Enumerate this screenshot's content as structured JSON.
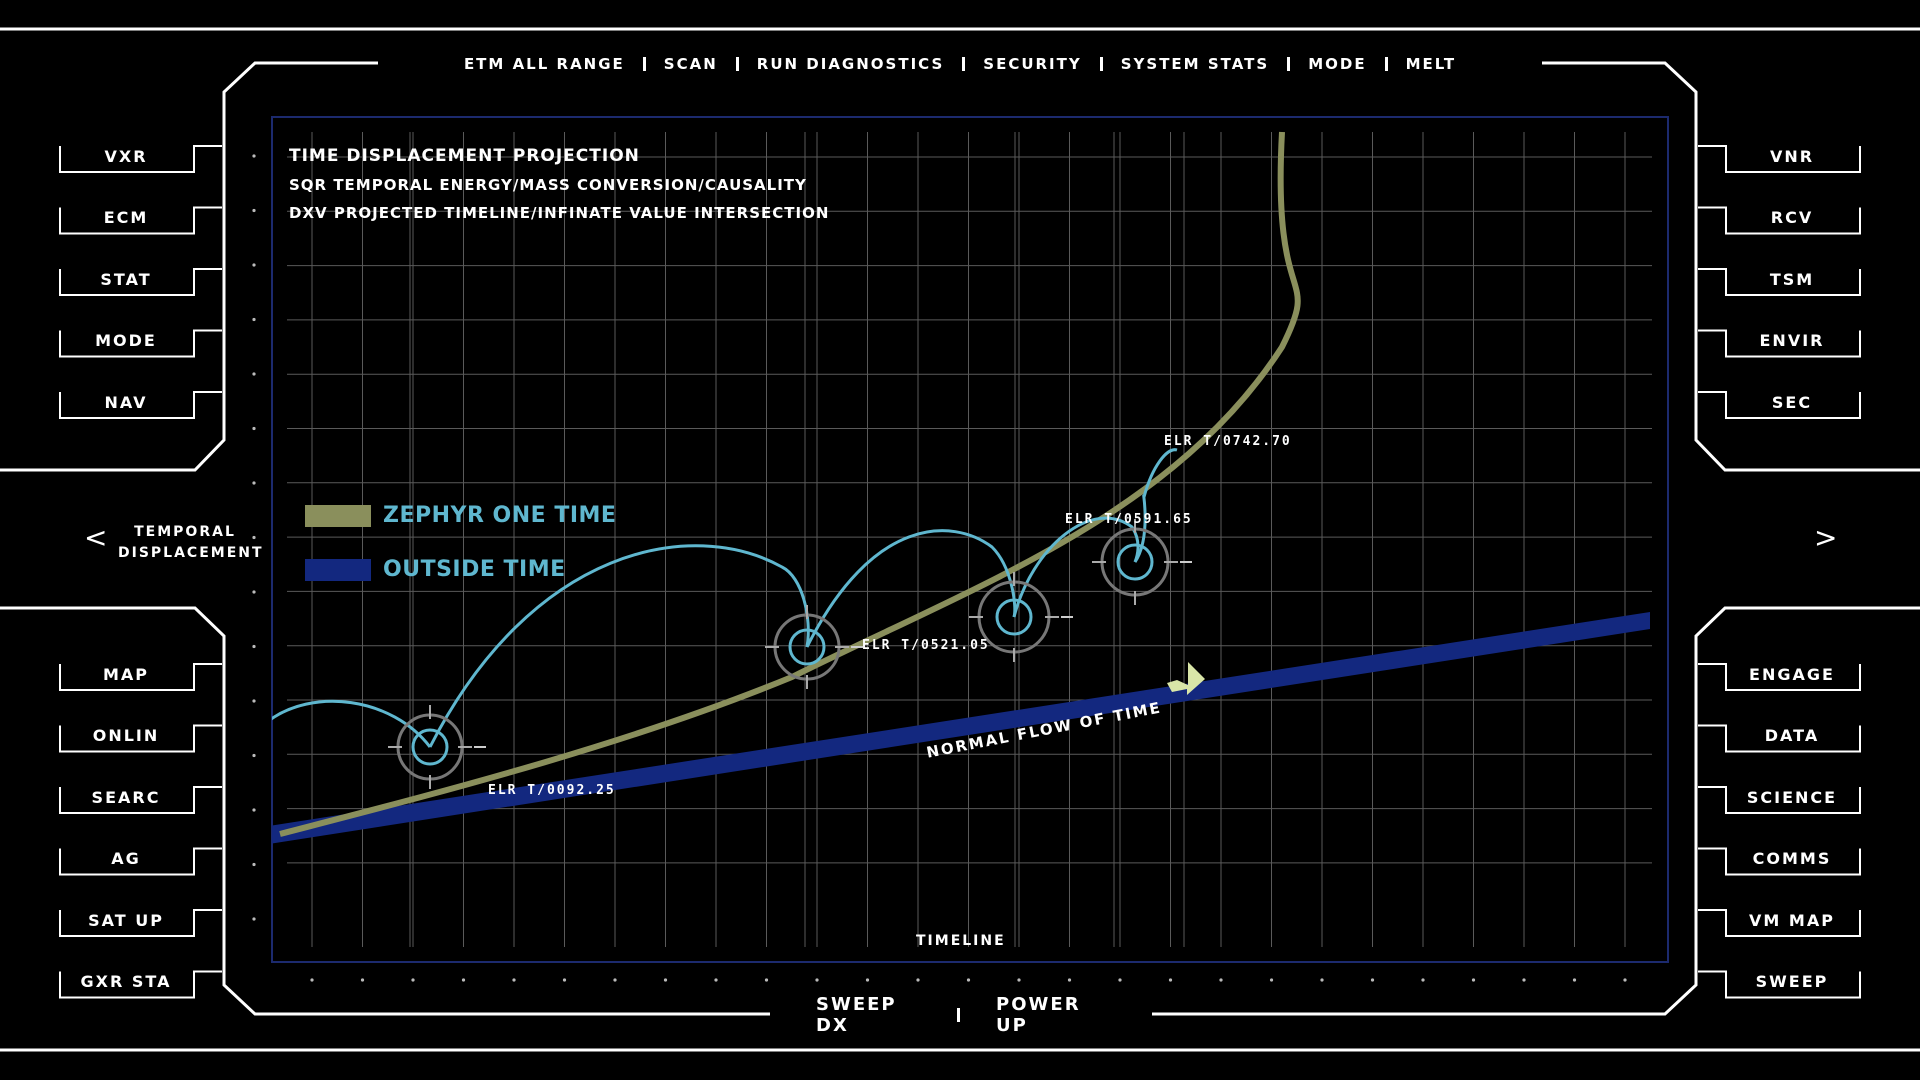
{
  "top_menu": [
    "ETM ALL RANGE",
    "SCAN",
    "RUN DIAGNOSTICS",
    "SECURITY",
    "SYSTEM STATS",
    "MODE",
    "MELT"
  ],
  "left_top_buttons": [
    "VXR",
    "ECM",
    "STAT",
    "MODE",
    "NAV"
  ],
  "left_bottom_buttons": [
    "MAP",
    "ONLIN",
    "SEARC",
    "AG",
    "SAT UP",
    "GXR STA"
  ],
  "right_top_buttons": [
    "VNR",
    "RCV",
    "TSM",
    "ENVIR",
    "SEC"
  ],
  "right_bottom_buttons": [
    "ENGAGE",
    "DATA",
    "SCIENCE",
    "COMMS",
    "VM MAP",
    "SWEEP"
  ],
  "left_nav": {
    "arrow": "<",
    "label_line1": "TEMPORAL",
    "label_line2": "DISPLACEMENT"
  },
  "right_nav": {
    "arrow": ">"
  },
  "bottom_menu": [
    "SWEEP DX",
    "POWER UP"
  ],
  "chart_header": {
    "title": "TIME DISPLACEMENT PROJECTION",
    "line2": "SQR TEMPORAL ENERGY/MASS CONVERSION/CAUSALITY",
    "line3": "DXV PROJECTED TIMELINE/INFINATE VALUE INTERSECTION"
  },
  "colors": {
    "zephyr": "#8a8f5c",
    "outside": "#13287f",
    "arc": "#5fb7cf",
    "grid": "#5a5a5a",
    "frame": "#ffffff",
    "plot_border": "#1c2a6e"
  },
  "chart_data": {
    "type": "line",
    "xlabel": "TIMELINE",
    "series": [
      {
        "name": "ZEPHYR ONE TIME",
        "color": "#8a8f5c"
      },
      {
        "name": "OUTSIDE TIME",
        "color": "#13287f"
      }
    ],
    "markers": [
      {
        "label": "ELR T/0092.25"
      },
      {
        "label": "ELR T/0521.05"
      },
      {
        "label": "ELR T/0591.65"
      },
      {
        "label": "ELR T/0742.70"
      }
    ],
    "annotation": "NORMAL FLOW OF TIME",
    "grid": true
  }
}
